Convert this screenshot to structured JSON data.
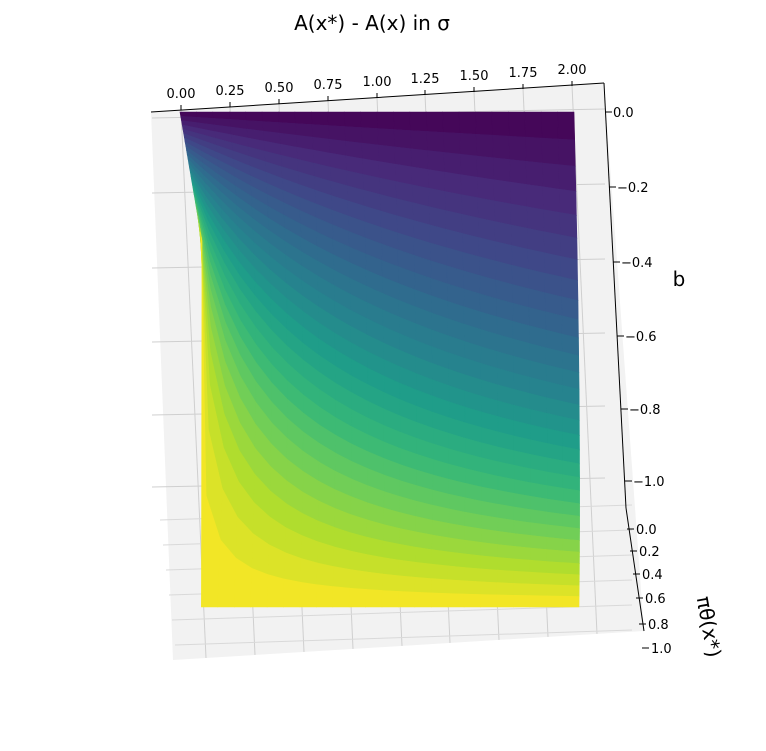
{
  "chart_data": {
    "type": "surface3d",
    "title": "A(x*) - A(x) in σ",
    "xlabel": "",
    "ylabel": "b",
    "zlabel": "πθ(x*)",
    "x_ticks": [
      "0.00",
      "0.25",
      "0.50",
      "0.75",
      "1.00",
      "1.25",
      "1.50",
      "1.75",
      "2.00"
    ],
    "y_ticks": [
      "0.0",
      "−0.2",
      "−0.4",
      "−0.6",
      "−0.8",
      "−1.0"
    ],
    "z_ticks": [
      "0.0",
      "0.2",
      "0.4",
      "0.6",
      "0.8",
      "1.0"
    ],
    "xlim": [
      -0.1,
      2.2
    ],
    "ylim": [
      -1.1,
      0.05
    ],
    "zlim": [
      0,
      1
    ],
    "colormap": "viridis",
    "grid": true,
    "surface": {
      "x_range": [
        0,
        2
      ],
      "pi_range": [
        0,
        1
      ],
      "note_formula": "b = -x * pi / (x*pi + 1 - pi)"
    },
    "pane_color": "#f2f2f2"
  }
}
